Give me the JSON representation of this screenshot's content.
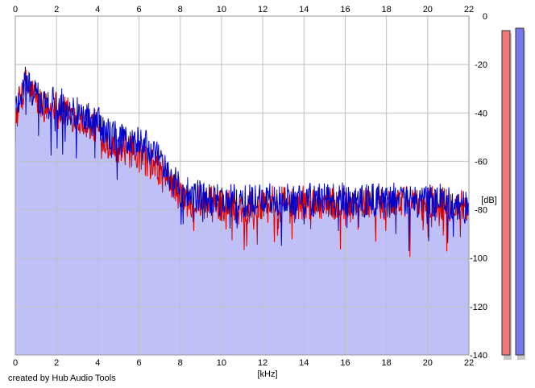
{
  "credit": "created by Hub Audio Tools",
  "chart_data": {
    "type": "area",
    "xlabel": "[kHz]",
    "ylabel": "[dB]",
    "xlim": [
      0,
      22
    ],
    "ylim": [
      -140,
      0
    ],
    "xticks": [
      0,
      2,
      4,
      6,
      8,
      10,
      12,
      14,
      16,
      18,
      20,
      22
    ],
    "yticks": [
      0,
      -20,
      -40,
      -60,
      -80,
      -100,
      -120,
      -140
    ],
    "grid": true,
    "legend": "none",
    "colors": {
      "fill": "#c0c0f8",
      "left_channel": "#e00000",
      "right_channel": "#0000c8",
      "grid": "#bfbfbf",
      "level_meter_left": "#ee7777",
      "level_meter_right": "#7777ee"
    },
    "series": [
      {
        "channel": "left",
        "x": [
          0,
          0.5,
          1,
          1.5,
          2,
          2.5,
          3,
          3.5,
          4,
          4.5,
          5,
          5.5,
          6,
          6.5,
          7,
          7.5,
          8,
          8.5,
          9,
          9.5,
          10,
          10.5,
          11,
          11.5,
          12,
          12.5,
          13,
          13.5,
          14,
          14.5,
          15,
          15.5,
          16,
          16.5,
          17,
          17.5,
          18,
          18.5,
          19,
          19.5,
          20,
          20.5,
          21,
          21.5,
          22
        ],
        "values": [
          -40,
          -28,
          -34,
          -38,
          -37,
          -40,
          -42,
          -44,
          -46,
          -52,
          -54,
          -56,
          -58,
          -60,
          -64,
          -68,
          -74,
          -76,
          -77,
          -77,
          -78,
          -78,
          -80,
          -78,
          -77,
          -77,
          -77,
          -78,
          -77,
          -77,
          -77,
          -78,
          -77,
          -77,
          -77,
          -78,
          -77,
          -77,
          -77,
          -78,
          -77,
          -77,
          -78,
          -78,
          -80
        ]
      },
      {
        "channel": "right",
        "x": [
          0,
          0.5,
          1,
          1.5,
          2,
          2.5,
          3,
          3.5,
          4,
          4.5,
          5,
          5.5,
          6,
          6.5,
          7,
          7.5,
          8,
          8.5,
          9,
          9.5,
          10,
          10.5,
          11,
          11.5,
          12,
          12.5,
          13,
          13.5,
          14,
          14.5,
          15,
          15.5,
          16,
          16.5,
          17,
          17.5,
          18,
          18.5,
          19,
          19.5,
          20,
          20.5,
          21,
          21.5,
          22
        ],
        "values": [
          -38,
          -27,
          -33,
          -37,
          -35,
          -38,
          -40,
          -42,
          -44,
          -48,
          -50,
          -52,
          -52,
          -55,
          -60,
          -66,
          -72,
          -74,
          -75,
          -76,
          -76,
          -76,
          -77,
          -76,
          -75,
          -76,
          -76,
          -76,
          -75,
          -76,
          -76,
          -76,
          -75,
          -76,
          -76,
          -76,
          -75,
          -76,
          -76,
          -77,
          -76,
          -76,
          -77,
          -78,
          -80
        ]
      }
    ],
    "level_meters": [
      {
        "channel": "left",
        "value": -6
      },
      {
        "channel": "right",
        "value": -5
      }
    ]
  }
}
